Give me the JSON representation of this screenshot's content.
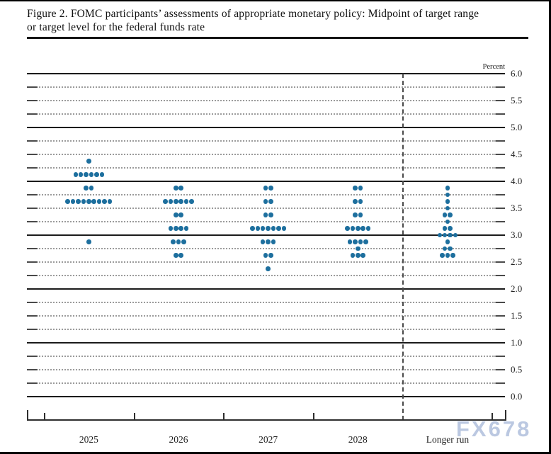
{
  "figure": {
    "title_line1": "Figure 2. FOMC participants’ assessments of appropriate monetary policy: Midpoint of target range",
    "title_line2": "or target level for the federal funds rate",
    "unit_label": "Percent",
    "watermark": "FX678"
  },
  "chart_data": {
    "type": "scatter",
    "variant": "fomc-dot-plot",
    "title": "FOMC participants’ assessments of appropriate monetary policy: Midpoint of target range or target level for the federal funds rate",
    "ylabel": "Percent",
    "ylim": [
      0.0,
      6.0
    ],
    "y_major_grid_interval": 1.0,
    "y_minor_grid_interval": 0.25,
    "y_tick_labels": [
      "6.0",
      "5.5",
      "5.0",
      "4.5",
      "4.0",
      "3.5",
      "3.0",
      "2.5",
      "2.0",
      "1.5",
      "1.0",
      "0.5",
      "0.0"
    ],
    "categories": [
      "2025",
      "2026",
      "2027",
      "2028",
      "Longer run"
    ],
    "separator_before_category": "Longer run",
    "grid": true,
    "legend": "none",
    "colors": {
      "dot": "#1d6f9e"
    },
    "series": [
      {
        "category": "2025",
        "dots": [
          {
            "rate": 4.375,
            "count": 1
          },
          {
            "rate": 4.125,
            "count": 6
          },
          {
            "rate": 3.875,
            "count": 2
          },
          {
            "rate": 3.625,
            "count": 9
          },
          {
            "rate": 2.875,
            "count": 1
          }
        ]
      },
      {
        "category": "2026",
        "dots": [
          {
            "rate": 3.875,
            "count": 2
          },
          {
            "rate": 3.625,
            "count": 6
          },
          {
            "rate": 3.375,
            "count": 2
          },
          {
            "rate": 3.125,
            "count": 4
          },
          {
            "rate": 2.875,
            "count": 3
          },
          {
            "rate": 2.625,
            "count": 2
          }
        ]
      },
      {
        "category": "2027",
        "dots": [
          {
            "rate": 3.875,
            "count": 2
          },
          {
            "rate": 3.625,
            "count": 2
          },
          {
            "rate": 3.375,
            "count": 2
          },
          {
            "rate": 3.125,
            "count": 7
          },
          {
            "rate": 2.875,
            "count": 3
          },
          {
            "rate": 2.625,
            "count": 2
          },
          {
            "rate": 2.375,
            "count": 1
          }
        ]
      },
      {
        "category": "2028",
        "dots": [
          {
            "rate": 3.875,
            "count": 2
          },
          {
            "rate": 3.625,
            "count": 2
          },
          {
            "rate": 3.375,
            "count": 2
          },
          {
            "rate": 3.125,
            "count": 5
          },
          {
            "rate": 2.875,
            "count": 4
          },
          {
            "rate": 2.75,
            "count": 1
          },
          {
            "rate": 2.625,
            "count": 3
          }
        ]
      },
      {
        "category": "Longer run",
        "dots": [
          {
            "rate": 3.875,
            "count": 1
          },
          {
            "rate": 3.75,
            "count": 1
          },
          {
            "rate": 3.625,
            "count": 1
          },
          {
            "rate": 3.5,
            "count": 1
          },
          {
            "rate": 3.375,
            "count": 2
          },
          {
            "rate": 3.25,
            "count": 1
          },
          {
            "rate": 3.125,
            "count": 2
          },
          {
            "rate": 3.0,
            "count": 4
          },
          {
            "rate": 2.875,
            "count": 1
          },
          {
            "rate": 2.75,
            "count": 2
          },
          {
            "rate": 2.625,
            "count": 3
          }
        ]
      }
    ]
  }
}
